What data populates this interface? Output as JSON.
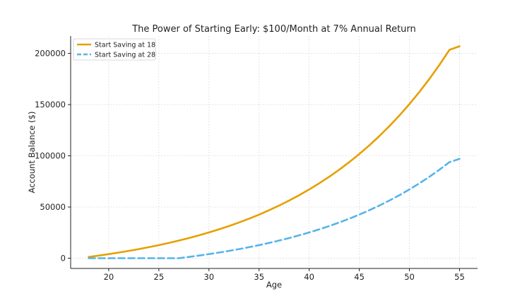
{
  "chart_data": {
    "type": "line",
    "title": "The Power of Starting Early: $100/Month at 7% Annual Return",
    "xlabel": "Age",
    "ylabel": "Account Balance ($)",
    "xlim": [
      16.2,
      56.8
    ],
    "ylim": [
      -10000,
      217000
    ],
    "x_ticks": [
      20,
      25,
      30,
      35,
      40,
      45,
      50,
      55
    ],
    "y_ticks": [
      0,
      50000,
      100000,
      150000,
      200000
    ],
    "grid": true,
    "legend_position": "top-left",
    "x": [
      18,
      19,
      20,
      21,
      22,
      23,
      24,
      25,
      26,
      27,
      28,
      29,
      30,
      31,
      32,
      33,
      34,
      35,
      36,
      37,
      38,
      39,
      40,
      41,
      42,
      43,
      44,
      45,
      46,
      47,
      48,
      49,
      50,
      51,
      52,
      53,
      54,
      55
    ],
    "series": [
      {
        "name": "Start Saving at 18",
        "color": "#e69f00",
        "style": "solid",
        "values": [
          1240,
          2570,
          3995,
          5520,
          7150,
          8900,
          10770,
          12780,
          14930,
          17230,
          19690,
          22330,
          25150,
          28180,
          31420,
          34890,
          38610,
          42590,
          46850,
          51420,
          56310,
          61540,
          67150,
          73160,
          79590,
          86480,
          93860,
          101760,
          110220,
          119280,
          128990,
          139390,
          150520,
          162440,
          175210,
          188890,
          203530,
          207000
        ]
      },
      {
        "name": "Start Saving at 28",
        "color": "#56b4e9",
        "style": "dashed",
        "values": [
          0,
          0,
          0,
          0,
          0,
          0,
          0,
          0,
          0,
          0,
          1240,
          2570,
          3995,
          5520,
          7150,
          8900,
          10770,
          12780,
          14930,
          17230,
          19690,
          22330,
          25150,
          28180,
          31420,
          34890,
          38610,
          42590,
          46850,
          51420,
          56310,
          61540,
          67150,
          73160,
          79590,
          86480,
          93860,
          97000
        ]
      }
    ]
  }
}
